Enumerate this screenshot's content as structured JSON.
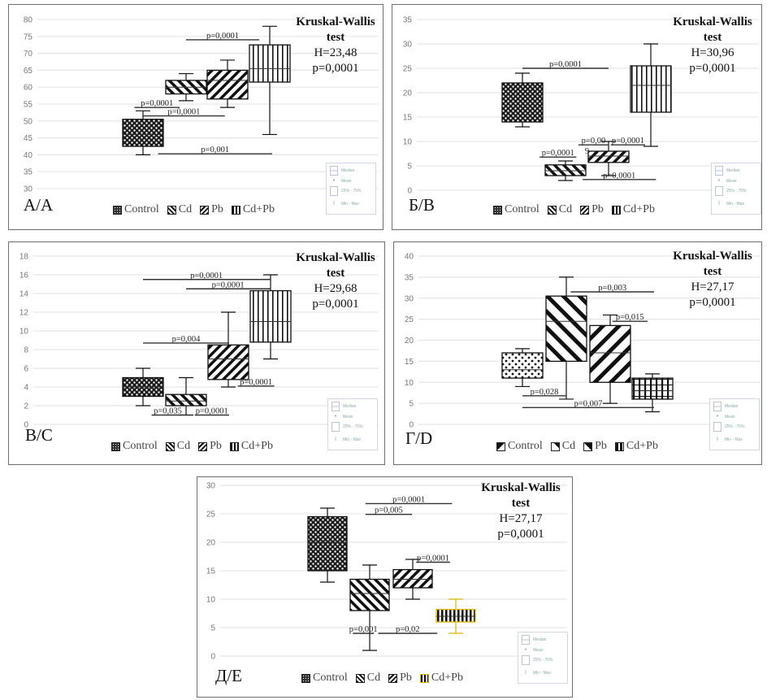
{
  "figure": {
    "legend_labels": [
      "Control",
      "Cd",
      "Pb",
      "Cd+Pb"
    ],
    "key_labels": {
      "median": "Median",
      "mean": "Mean",
      "iqr": "25% - 75%",
      "range": "Min - Max"
    },
    "test_title_line1": "Kruskal-Wallis",
    "test_title_line2": "test"
  },
  "chart_data": [
    {
      "id": "A",
      "type": "boxplot",
      "panel_label": "А/A",
      "ylim": [
        30,
        80
      ],
      "yticks": [
        30,
        35,
        40,
        45,
        50,
        55,
        60,
        65,
        70,
        75,
        80
      ],
      "grid": true,
      "categories": [
        "Control",
        "Cd",
        "Pb",
        "Cd+Pb"
      ],
      "values_estimated": true,
      "values_note": "Five-number summaries are approximate readings from the gridlines, not figures printed on the chart.",
      "series": [
        {
          "name": "Control",
          "min": 40,
          "q1": 42.5,
          "median": 46,
          "q3": 50.5,
          "max": 53,
          "pattern": "dots"
        },
        {
          "name": "Cd",
          "min": 56,
          "q1": 58,
          "median": 60,
          "q3": 62,
          "max": 64,
          "pattern": "back"
        },
        {
          "name": "Pb",
          "min": 54,
          "q1": 56.5,
          "median": 62,
          "q3": 65,
          "max": 68,
          "pattern": "fwd"
        },
        {
          "name": "Cd+Pb",
          "min": 46,
          "q1": 61.5,
          "median": 65.5,
          "q3": 72.5,
          "max": 78,
          "pattern": "vert"
        }
      ],
      "comparisons": [
        {
          "label": "p=0,0001",
          "y": 74,
          "from": 1.0,
          "to": 2.7
        },
        {
          "label": "p=0,0001",
          "y": 54,
          "from": -0.2,
          "to": 0.85
        },
        {
          "label": "p=0,0001",
          "y": 51.5,
          "from": 0.0,
          "to": 1.9
        },
        {
          "label": "p=0,001",
          "y": 40.3,
          "from": 0.35,
          "to": 3.0
        }
      ],
      "test": {
        "H": "H=23,48",
        "p": "p=0,0001"
      },
      "legend_position": "bottom"
    },
    {
      "id": "B",
      "type": "boxplot",
      "panel_label": "Б/B",
      "ylim": [
        0,
        35
      ],
      "yticks": [
        0,
        5,
        10,
        15,
        20,
        25,
        30,
        35
      ],
      "grid": true,
      "categories": [
        "Control",
        "Cd",
        "Pb",
        "Cd+Pb"
      ],
      "values_estimated": true,
      "values_note": "Five-number summaries are approximate readings from the gridlines, not figures printed on the chart.",
      "series": [
        {
          "name": "Control",
          "min": 13,
          "q1": 14,
          "median": 18,
          "q3": 22,
          "max": 24,
          "pattern": "dots"
        },
        {
          "name": "Cd",
          "min": 2,
          "q1": 3,
          "median": 4,
          "q3": 5.2,
          "max": 6,
          "pattern": "back"
        },
        {
          "name": "Pb",
          "min": 3,
          "q1": 5.7,
          "median": 7,
          "q3": 8,
          "max": 10,
          "pattern": "fwd"
        },
        {
          "name": "Cd+Pb",
          "min": 9,
          "q1": 16,
          "median": 21.5,
          "q3": 25.5,
          "max": 30,
          "pattern": "vert"
        }
      ],
      "comparisons": [
        {
          "label": "p=0,0001",
          "y": 25,
          "from": 0.0,
          "to": 2.0
        },
        {
          "label": "p=0,0001",
          "y": 6.8,
          "from": 0.4,
          "to": 1.25
        },
        {
          "label": "p=0,00",
          "y": 9.3,
          "from": 1.3,
          "to": 2.0,
          "sub": "9"
        },
        {
          "label": "p=0,0001",
          "y": 9.3,
          "from": 2.05,
          "to": 2.85
        },
        {
          "label": "p=0,0001",
          "y": 2.2,
          "from": 1.4,
          "to": 3.1
        }
      ],
      "test": {
        "H": "H=30,96",
        "p": "p=0,0001"
      },
      "legend_position": "bottom"
    },
    {
      "id": "C",
      "type": "boxplot",
      "panel_label": "В/C",
      "ylim": [
        0,
        18
      ],
      "yticks": [
        0,
        2,
        4,
        6,
        8,
        10,
        12,
        14,
        16,
        18
      ],
      "grid": true,
      "categories": [
        "Control",
        "Cd",
        "Pb",
        "Cd+Pb"
      ],
      "values_estimated": true,
      "values_note": "Five-number summaries are approximate readings from the gridlines, not figures printed on the chart.",
      "series": [
        {
          "name": "Control",
          "min": 2,
          "q1": 3,
          "median": 4,
          "q3": 5,
          "max": 6,
          "pattern": "dots"
        },
        {
          "name": "Cd",
          "min": 1,
          "q1": 2,
          "median": 2.5,
          "q3": 3.2,
          "max": 5,
          "pattern": "back"
        },
        {
          "name": "Pb",
          "min": 4,
          "q1": 4.8,
          "median": 7,
          "q3": 8.5,
          "max": 12,
          "pattern": "fwd"
        },
        {
          "name": "Cd+Pb",
          "min": 7,
          "q1": 8.8,
          "median": 11,
          "q3": 14.3,
          "max": 16,
          "pattern": "vert"
        }
      ],
      "comparisons": [
        {
          "label": "p=0,0001",
          "y": 15.5,
          "from": 0.0,
          "to": 2.95
        },
        {
          "label": "p=0,0001",
          "y": 14.5,
          "from": 1.0,
          "to": 2.95
        },
        {
          "label": "p=0,004",
          "y": 8.7,
          "from": 0.0,
          "to": 2.0
        },
        {
          "label": "p=0,0001",
          "y": 4.1,
          "from": 2.2,
          "to": 3.05
        },
        {
          "label": "p=0,035",
          "y": 1.0,
          "from": 0.2,
          "to": 0.95
        },
        {
          "label": "p=0,0001",
          "y": 1.0,
          "from": 1.2,
          "to": 2.0
        }
      ],
      "test": {
        "H": "H=29,68",
        "p": "p=0,0001"
      },
      "legend_position": "bottom"
    },
    {
      "id": "D",
      "type": "boxplot",
      "panel_label": "Г/D",
      "ylim": [
        0,
        40
      ],
      "yticks": [
        0,
        5,
        10,
        15,
        20,
        25,
        30,
        35,
        40
      ],
      "grid": true,
      "categories": [
        "Control",
        "Cd",
        "Pb",
        "Cd+Pb"
      ],
      "values_estimated": true,
      "values_note": "Five-number summaries are approximate readings from the gridlines, not figures printed on the chart.",
      "series": [
        {
          "name": "Control",
          "min": 9,
          "q1": 11,
          "median": 13,
          "q3": 17,
          "max": 18,
          "pattern": "bigdots"
        },
        {
          "name": "Cd",
          "min": 6,
          "q1": 15,
          "median": 24.5,
          "q3": 30.5,
          "max": 35,
          "pattern": "wideback"
        },
        {
          "name": "Pb",
          "min": 5,
          "q1": 10,
          "median": 17,
          "q3": 23.5,
          "max": 26,
          "pattern": "widefwd"
        },
        {
          "name": "Cd+Pb",
          "min": 3,
          "q1": 6,
          "median": 8,
          "q3": 11,
          "max": 12,
          "pattern": "grid"
        }
      ],
      "comparisons": [
        {
          "label": "p=0,003",
          "y": 31.5,
          "from": 1.1,
          "to": 3.0
        },
        {
          "label": "p=0,015",
          "y": 24.5,
          "from": 2.05,
          "to": 2.85
        },
        {
          "label": "p=0,028",
          "y": 6.8,
          "from": 0.0,
          "to": 1.0
        },
        {
          "label": "p=0,007",
          "y": 4.0,
          "from": 0.0,
          "to": 3.0
        }
      ],
      "test": {
        "H": "H=27,17",
        "p": "p=0,0001"
      },
      "legend_position": "bottom"
    },
    {
      "id": "E",
      "type": "boxplot",
      "panel_label": "Д/E",
      "ylim": [
        0,
        30
      ],
      "yticks": [
        0,
        5,
        10,
        15,
        20,
        25,
        30
      ],
      "grid": true,
      "categories": [
        "Control",
        "Cd",
        "Pb",
        "Cd+Pb"
      ],
      "values_estimated": true,
      "values_note": "Five-number summaries are approximate readings from the gridlines, not figures printed on the chart.",
      "series": [
        {
          "name": "Control",
          "min": 13,
          "q1": 15,
          "median": 20,
          "q3": 24.5,
          "max": 26,
          "pattern": "dots"
        },
        {
          "name": "Cd",
          "min": 1,
          "q1": 8,
          "median": 11,
          "q3": 13.5,
          "max": 16,
          "pattern": "back"
        },
        {
          "name": "Pb",
          "min": 10,
          "q1": 12,
          "median": 13.5,
          "q3": 15.2,
          "max": 17,
          "pattern": "fwd"
        },
        {
          "name": "Cd+Pb",
          "min": 4,
          "q1": 6,
          "median": 7,
          "q3": 8.2,
          "max": 10,
          "pattern": "vertyellow",
          "color": "#e0b400"
        }
      ],
      "comparisons": [
        {
          "label": "p=0,0001",
          "y": 26.8,
          "from": 0.9,
          "to": 2.95
        },
        {
          "label": "p=0,005",
          "y": 24.9,
          "from": 0.9,
          "to": 2.0
        },
        {
          "label": "p=0,0001",
          "y": 16.5,
          "from": 2.1,
          "to": 2.9
        },
        {
          "label": "p=0,001",
          "y": 4.0,
          "from": 0.6,
          "to": 1.1
        },
        {
          "label": "p=0,02",
          "y": 4.0,
          "from": 1.2,
          "to": 2.6
        }
      ],
      "test": {
        "H": "H=27,17",
        "p": "p=0,0001"
      },
      "legend_position": "bottom"
    }
  ]
}
